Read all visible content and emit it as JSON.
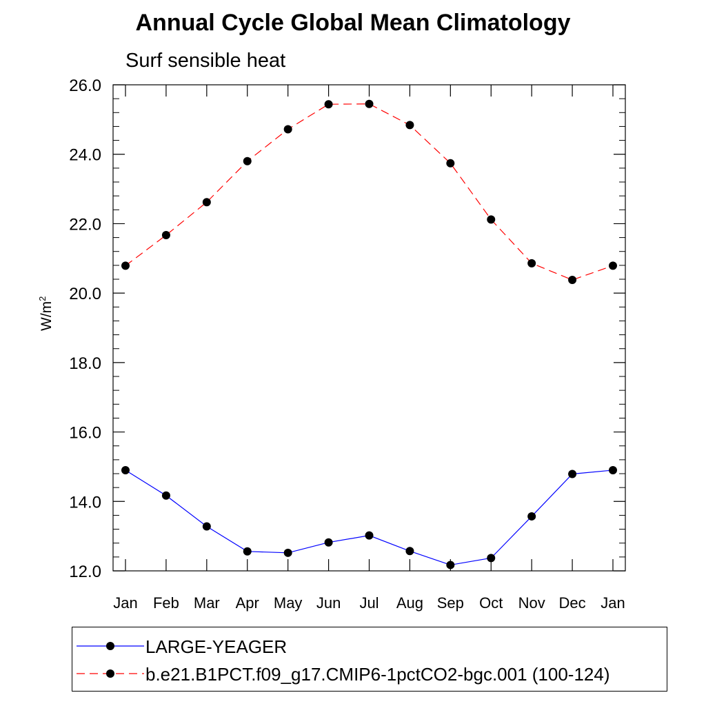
{
  "chart_data": {
    "type": "line",
    "title": "Annual Cycle Global Mean Climatology",
    "subtitle": "Surf sensible heat",
    "ylabel_base": "W/m",
    "ylabel_sup": "2",
    "categories": [
      "Jan",
      "Feb",
      "Mar",
      "Apr",
      "May",
      "Jun",
      "Jul",
      "Aug",
      "Sep",
      "Oct",
      "Nov",
      "Dec",
      "Jan"
    ],
    "ylim": [
      12.0,
      26.0
    ],
    "yticks": [
      "12.0",
      "14.0",
      "16.0",
      "18.0",
      "20.0",
      "22.0",
      "24.0",
      "26.0"
    ],
    "grid": false,
    "legend_position": "bottom",
    "series": [
      {
        "name": "LARGE-YEAGER",
        "color": "#0000ff",
        "style": "solid",
        "values": [
          14.9,
          14.17,
          13.28,
          12.56,
          12.52,
          12.82,
          13.02,
          12.57,
          12.17,
          12.37,
          13.57,
          14.79,
          14.9
        ]
      },
      {
        "name": "b.e21.B1PCT.f09_g17.CMIP6-1pctCO2-bgc.001 (100-124)",
        "color": "#ff0000",
        "style": "dashed",
        "values": [
          20.79,
          21.67,
          22.62,
          23.8,
          24.72,
          25.44,
          25.45,
          24.84,
          23.74,
          22.12,
          20.86,
          20.38,
          20.79
        ]
      }
    ]
  }
}
